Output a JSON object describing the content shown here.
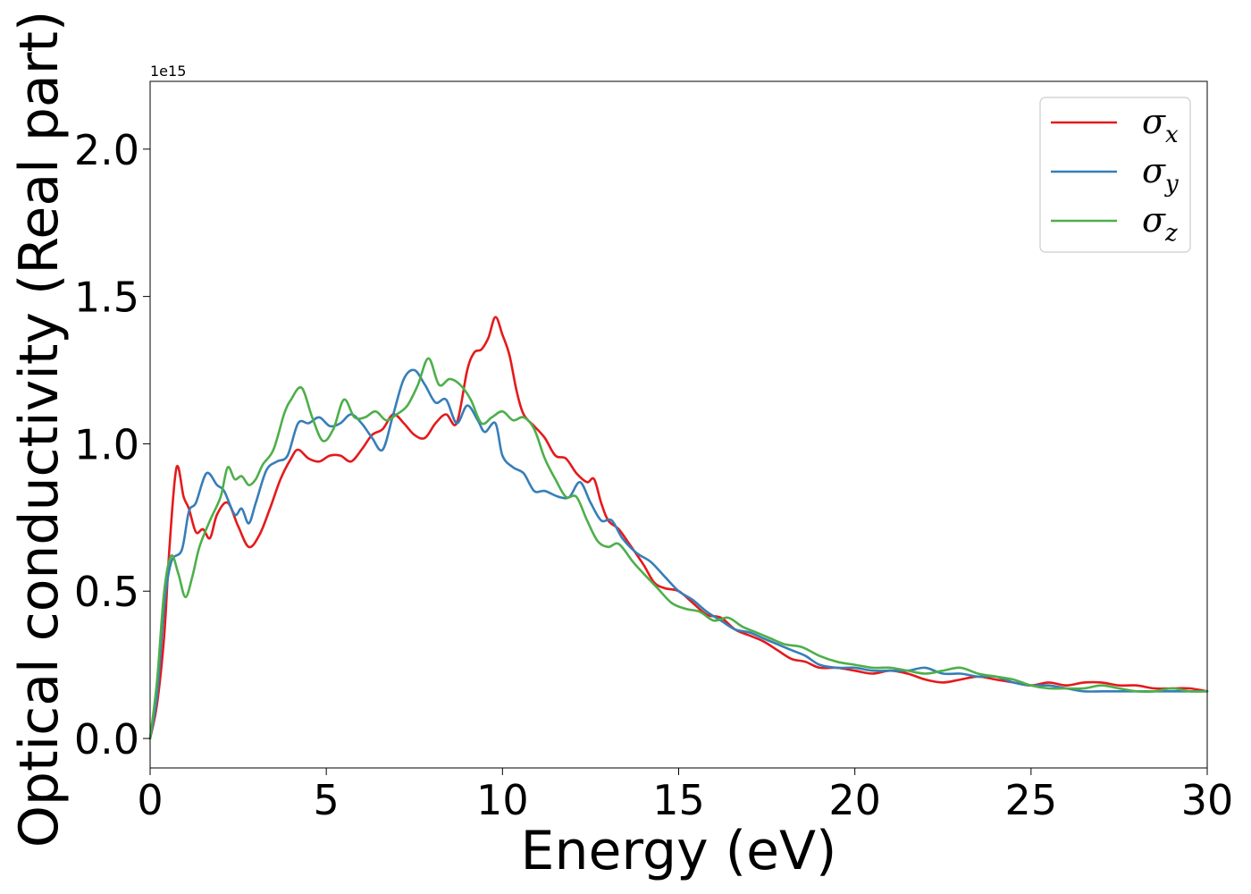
{
  "chart_data": {
    "type": "line",
    "xlabel": "Energy (eV)",
    "ylabel": "Optical conductivity (Real part)",
    "y_offset_text": "1e15",
    "xlim": [
      0,
      30
    ],
    "ylim": [
      -0.1,
      2.23
    ],
    "xticks": [
      0,
      5,
      10,
      15,
      20,
      25,
      30
    ],
    "xtick_labels": [
      "0",
      "5",
      "10",
      "15",
      "20",
      "25",
      "30"
    ],
    "yticks": [
      0.0,
      0.5,
      1.0,
      1.5,
      2.0
    ],
    "ytick_labels": [
      "0.0",
      "0.5",
      "1.0",
      "1.5",
      "2.0"
    ],
    "grid": false,
    "legend_position": "top-right",
    "series": [
      {
        "name": "σ",
        "subscript": "x",
        "color": "#e41a1c",
        "points": [
          [
            0,
            0
          ],
          [
            0.2,
            0.12
          ],
          [
            0.4,
            0.35
          ],
          [
            0.55,
            0.65
          ],
          [
            0.75,
            0.92
          ],
          [
            0.95,
            0.82
          ],
          [
            1.1,
            0.78
          ],
          [
            1.3,
            0.7
          ],
          [
            1.5,
            0.71
          ],
          [
            1.7,
            0.68
          ],
          [
            1.9,
            0.76
          ],
          [
            2.2,
            0.8
          ],
          [
            2.5,
            0.72
          ],
          [
            2.8,
            0.65
          ],
          [
            3.1,
            0.69
          ],
          [
            3.4,
            0.78
          ],
          [
            3.7,
            0.88
          ],
          [
            4.0,
            0.95
          ],
          [
            4.2,
            0.98
          ],
          [
            4.5,
            0.95
          ],
          [
            4.8,
            0.94
          ],
          [
            5.1,
            0.96
          ],
          [
            5.4,
            0.96
          ],
          [
            5.7,
            0.94
          ],
          [
            6.0,
            0.98
          ],
          [
            6.3,
            1.03
          ],
          [
            6.6,
            1.05
          ],
          [
            6.9,
            1.1
          ],
          [
            7.2,
            1.07
          ],
          [
            7.5,
            1.03
          ],
          [
            7.8,
            1.02
          ],
          [
            8.1,
            1.07
          ],
          [
            8.4,
            1.1
          ],
          [
            8.7,
            1.07
          ],
          [
            9.0,
            1.25
          ],
          [
            9.2,
            1.31
          ],
          [
            9.4,
            1.32
          ],
          [
            9.6,
            1.36
          ],
          [
            9.8,
            1.43
          ],
          [
            10.0,
            1.37
          ],
          [
            10.2,
            1.3
          ],
          [
            10.4,
            1.18
          ],
          [
            10.6,
            1.1
          ],
          [
            10.9,
            1.06
          ],
          [
            11.2,
            1.02
          ],
          [
            11.5,
            0.96
          ],
          [
            11.8,
            0.95
          ],
          [
            12.1,
            0.9
          ],
          [
            12.4,
            0.87
          ],
          [
            12.6,
            0.88
          ],
          [
            12.8,
            0.8
          ],
          [
            13.0,
            0.74
          ],
          [
            13.3,
            0.71
          ],
          [
            13.6,
            0.66
          ],
          [
            14.0,
            0.59
          ],
          [
            14.3,
            0.53
          ],
          [
            14.6,
            0.51
          ],
          [
            15.0,
            0.5
          ],
          [
            15.4,
            0.46
          ],
          [
            15.8,
            0.42
          ],
          [
            16.2,
            0.41
          ],
          [
            16.6,
            0.37
          ],
          [
            17.0,
            0.35
          ],
          [
            17.4,
            0.33
          ],
          [
            17.8,
            0.3
          ],
          [
            18.2,
            0.27
          ],
          [
            18.6,
            0.26
          ],
          [
            19.0,
            0.24
          ],
          [
            19.5,
            0.24
          ],
          [
            20.0,
            0.23
          ],
          [
            20.5,
            0.22
          ],
          [
            21.0,
            0.23
          ],
          [
            21.5,
            0.22
          ],
          [
            22.0,
            0.2
          ],
          [
            22.5,
            0.19
          ],
          [
            23.0,
            0.2
          ],
          [
            23.5,
            0.21
          ],
          [
            24.0,
            0.2
          ],
          [
            24.5,
            0.19
          ],
          [
            25.0,
            0.18
          ],
          [
            25.5,
            0.19
          ],
          [
            26.0,
            0.18
          ],
          [
            26.5,
            0.19
          ],
          [
            27.0,
            0.19
          ],
          [
            27.5,
            0.18
          ],
          [
            28.0,
            0.18
          ],
          [
            28.5,
            0.17
          ],
          [
            29.0,
            0.17
          ],
          [
            29.5,
            0.17
          ],
          [
            30.0,
            0.16
          ]
        ]
      },
      {
        "name": "σ",
        "subscript": "y",
        "color": "#377eb8",
        "points": [
          [
            0,
            0
          ],
          [
            0.2,
            0.15
          ],
          [
            0.4,
            0.45
          ],
          [
            0.6,
            0.6
          ],
          [
            0.9,
            0.64
          ],
          [
            1.1,
            0.77
          ],
          [
            1.3,
            0.8
          ],
          [
            1.6,
            0.9
          ],
          [
            1.9,
            0.86
          ],
          [
            2.1,
            0.84
          ],
          [
            2.4,
            0.76
          ],
          [
            2.6,
            0.78
          ],
          [
            2.8,
            0.73
          ],
          [
            3.0,
            0.8
          ],
          [
            3.3,
            0.91
          ],
          [
            3.6,
            0.94
          ],
          [
            3.9,
            0.96
          ],
          [
            4.2,
            1.07
          ],
          [
            4.5,
            1.07
          ],
          [
            4.8,
            1.09
          ],
          [
            5.1,
            1.06
          ],
          [
            5.4,
            1.07
          ],
          [
            5.7,
            1.1
          ],
          [
            6.0,
            1.07
          ],
          [
            6.3,
            1.02
          ],
          [
            6.6,
            0.98
          ],
          [
            6.9,
            1.1
          ],
          [
            7.2,
            1.22
          ],
          [
            7.5,
            1.25
          ],
          [
            7.8,
            1.2
          ],
          [
            8.1,
            1.14
          ],
          [
            8.4,
            1.15
          ],
          [
            8.7,
            1.07
          ],
          [
            9.0,
            1.13
          ],
          [
            9.3,
            1.08
          ],
          [
            9.5,
            1.04
          ],
          [
            9.8,
            1.07
          ],
          [
            10.0,
            0.96
          ],
          [
            10.3,
            0.92
          ],
          [
            10.6,
            0.9
          ],
          [
            10.9,
            0.84
          ],
          [
            11.2,
            0.84
          ],
          [
            11.6,
            0.82
          ],
          [
            11.9,
            0.82
          ],
          [
            12.2,
            0.87
          ],
          [
            12.5,
            0.8
          ],
          [
            12.8,
            0.74
          ],
          [
            13.1,
            0.74
          ],
          [
            13.4,
            0.68
          ],
          [
            13.8,
            0.63
          ],
          [
            14.2,
            0.6
          ],
          [
            14.6,
            0.55
          ],
          [
            15.0,
            0.5
          ],
          [
            15.4,
            0.47
          ],
          [
            15.8,
            0.43
          ],
          [
            16.2,
            0.4
          ],
          [
            16.6,
            0.37
          ],
          [
            17.0,
            0.36
          ],
          [
            17.4,
            0.34
          ],
          [
            17.8,
            0.32
          ],
          [
            18.2,
            0.3
          ],
          [
            18.6,
            0.28
          ],
          [
            19.0,
            0.25
          ],
          [
            19.5,
            0.24
          ],
          [
            20.0,
            0.24
          ],
          [
            20.5,
            0.23
          ],
          [
            21.0,
            0.23
          ],
          [
            21.5,
            0.23
          ],
          [
            22.0,
            0.24
          ],
          [
            22.5,
            0.22
          ],
          [
            23.0,
            0.22
          ],
          [
            23.5,
            0.21
          ],
          [
            24.0,
            0.21
          ],
          [
            24.5,
            0.19
          ],
          [
            25.0,
            0.18
          ],
          [
            25.5,
            0.18
          ],
          [
            26.0,
            0.17
          ],
          [
            26.5,
            0.16
          ],
          [
            27.0,
            0.16
          ],
          [
            27.5,
            0.16
          ],
          [
            28.0,
            0.16
          ],
          [
            28.5,
            0.16
          ],
          [
            29.0,
            0.16
          ],
          [
            29.5,
            0.16
          ],
          [
            30.0,
            0.16
          ]
        ]
      },
      {
        "name": "σ",
        "subscript": "z",
        "color": "#4daf4a",
        "points": [
          [
            0,
            0
          ],
          [
            0.2,
            0.2
          ],
          [
            0.4,
            0.5
          ],
          [
            0.6,
            0.62
          ],
          [
            0.8,
            0.56
          ],
          [
            1.0,
            0.48
          ],
          [
            1.2,
            0.55
          ],
          [
            1.4,
            0.65
          ],
          [
            1.7,
            0.74
          ],
          [
            2.0,
            0.82
          ],
          [
            2.2,
            0.92
          ],
          [
            2.4,
            0.88
          ],
          [
            2.6,
            0.89
          ],
          [
            2.8,
            0.86
          ],
          [
            3.0,
            0.88
          ],
          [
            3.2,
            0.93
          ],
          [
            3.5,
            0.98
          ],
          [
            3.8,
            1.1
          ],
          [
            4.0,
            1.15
          ],
          [
            4.3,
            1.19
          ],
          [
            4.6,
            1.09
          ],
          [
            4.9,
            1.01
          ],
          [
            5.2,
            1.05
          ],
          [
            5.5,
            1.15
          ],
          [
            5.8,
            1.09
          ],
          [
            6.1,
            1.09
          ],
          [
            6.4,
            1.11
          ],
          [
            6.7,
            1.08
          ],
          [
            7.0,
            1.1
          ],
          [
            7.3,
            1.13
          ],
          [
            7.6,
            1.2
          ],
          [
            7.9,
            1.29
          ],
          [
            8.2,
            1.2
          ],
          [
            8.5,
            1.22
          ],
          [
            8.8,
            1.2
          ],
          [
            9.1,
            1.15
          ],
          [
            9.4,
            1.07
          ],
          [
            9.7,
            1.09
          ],
          [
            10.0,
            1.11
          ],
          [
            10.3,
            1.08
          ],
          [
            10.6,
            1.09
          ],
          [
            10.9,
            1.05
          ],
          [
            11.2,
            0.95
          ],
          [
            11.5,
            0.88
          ],
          [
            11.8,
            0.82
          ],
          [
            12.1,
            0.82
          ],
          [
            12.4,
            0.74
          ],
          [
            12.7,
            0.67
          ],
          [
            13.0,
            0.65
          ],
          [
            13.3,
            0.66
          ],
          [
            13.7,
            0.6
          ],
          [
            14.0,
            0.56
          ],
          [
            14.4,
            0.51
          ],
          [
            14.8,
            0.46
          ],
          [
            15.2,
            0.44
          ],
          [
            15.6,
            0.43
          ],
          [
            16.0,
            0.4
          ],
          [
            16.4,
            0.41
          ],
          [
            16.8,
            0.38
          ],
          [
            17.2,
            0.36
          ],
          [
            17.6,
            0.34
          ],
          [
            18.0,
            0.32
          ],
          [
            18.5,
            0.31
          ],
          [
            19.0,
            0.28
          ],
          [
            19.5,
            0.26
          ],
          [
            20.0,
            0.25
          ],
          [
            20.5,
            0.24
          ],
          [
            21.0,
            0.24
          ],
          [
            21.5,
            0.23
          ],
          [
            22.0,
            0.22
          ],
          [
            22.5,
            0.23
          ],
          [
            23.0,
            0.24
          ],
          [
            23.5,
            0.22
          ],
          [
            24.0,
            0.21
          ],
          [
            24.5,
            0.2
          ],
          [
            25.0,
            0.18
          ],
          [
            25.5,
            0.17
          ],
          [
            26.0,
            0.17
          ],
          [
            26.5,
            0.17
          ],
          [
            27.0,
            0.18
          ],
          [
            27.5,
            0.17
          ],
          [
            28.0,
            0.16
          ],
          [
            28.5,
            0.16
          ],
          [
            29.0,
            0.17
          ],
          [
            29.5,
            0.16
          ],
          [
            30.0,
            0.16
          ]
        ]
      }
    ]
  }
}
